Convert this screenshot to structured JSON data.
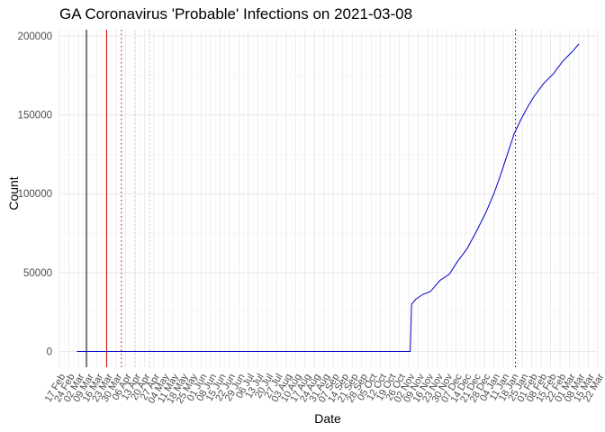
{
  "chart_data": {
    "type": "line",
    "title": "GA Coronavirus 'Probable' Infections on 2021-03-08",
    "xlabel": "Date",
    "ylabel": "Count",
    "x_axis": "date",
    "xlim": [
      "2020-02-17",
      "2021-03-22"
    ],
    "ylim": [
      -10000,
      204000
    ],
    "y_ticks": [
      0,
      50000,
      100000,
      150000,
      200000
    ],
    "y_tick_labels": [
      "0",
      "50000",
      "100000",
      "150000",
      "200000"
    ],
    "x_tick_labels": [
      "17 Feb",
      "24 Feb",
      "02 Mar",
      "09 Mar",
      "16 Mar",
      "23 Mar",
      "30 Mar",
      "06 Apr",
      "13 Apr",
      "20 Apr",
      "27 Apr",
      "04 May",
      "11 May",
      "18 May",
      "25 May",
      "01 Jun",
      "08 Jun",
      "15 Jun",
      "22 Jun",
      "29 Jun",
      "06 Jul",
      "13 Jul",
      "20 Jul",
      "27 Jul",
      "03 Aug",
      "10 Aug",
      "17 Aug",
      "24 Aug",
      "31 Aug",
      "07 Sep",
      "14 Sep",
      "21 Sep",
      "28 Sep",
      "05 Oct",
      "12 Oct",
      "19 Oct",
      "26 Oct",
      "02 Nov",
      "09 Nov",
      "16 Nov",
      "23 Nov",
      "30 Nov",
      "07 Dec",
      "14 Dec",
      "21 Dec",
      "28 Dec",
      "04 Jan",
      "11 Jan",
      "18 Jan",
      "25 Jan",
      "01 Feb",
      "08 Feb",
      "15 Feb",
      "22 Feb",
      "01 Mar",
      "08 Mar",
      "15 Mar",
      "22 Mar"
    ],
    "x_tick_dates": [
      "2020-02-17",
      "2020-02-24",
      "2020-03-02",
      "2020-03-09",
      "2020-03-16",
      "2020-03-23",
      "2020-03-30",
      "2020-04-06",
      "2020-04-13",
      "2020-04-20",
      "2020-04-27",
      "2020-05-04",
      "2020-05-11",
      "2020-05-18",
      "2020-05-25",
      "2020-06-01",
      "2020-06-08",
      "2020-06-15",
      "2020-06-22",
      "2020-06-29",
      "2020-07-06",
      "2020-07-13",
      "2020-07-20",
      "2020-07-27",
      "2020-08-03",
      "2020-08-10",
      "2020-08-17",
      "2020-08-24",
      "2020-08-31",
      "2020-09-07",
      "2020-09-14",
      "2020-09-21",
      "2020-09-28",
      "2020-10-05",
      "2020-10-12",
      "2020-10-19",
      "2020-10-26",
      "2020-11-02",
      "2020-11-09",
      "2020-11-16",
      "2020-11-23",
      "2020-11-30",
      "2020-12-07",
      "2020-12-14",
      "2020-12-21",
      "2020-12-28",
      "2021-01-04",
      "2021-01-11",
      "2021-01-18",
      "2021-01-25",
      "2021-02-01",
      "2021-02-08",
      "2021-02-15",
      "2021-02-22",
      "2021-03-01",
      "2021-03-08",
      "2021-03-15",
      "2021-03-22"
    ],
    "grid": true,
    "series": [
      {
        "color": "#0000cc",
        "points": [
          [
            "2020-03-01",
            0
          ],
          [
            "2020-11-03",
            0
          ],
          [
            "2020-11-04",
            30000
          ],
          [
            "2020-11-07",
            33000
          ],
          [
            "2020-11-12",
            36000
          ],
          [
            "2020-11-18",
            38000
          ],
          [
            "2020-11-25",
            45000
          ],
          [
            "2020-12-02",
            49000
          ],
          [
            "2020-12-08",
            57000
          ],
          [
            "2020-12-15",
            65000
          ],
          [
            "2020-12-22",
            76000
          ],
          [
            "2020-12-29",
            88000
          ],
          [
            "2021-01-04",
            100000
          ],
          [
            "2021-01-09",
            112000
          ],
          [
            "2021-01-14",
            125000
          ],
          [
            "2021-01-19",
            138000
          ],
          [
            "2021-01-24",
            147000
          ],
          [
            "2021-01-29",
            155000
          ],
          [
            "2021-02-03",
            162000
          ],
          [
            "2021-02-10",
            170000
          ],
          [
            "2021-02-17",
            176000
          ],
          [
            "2021-02-24",
            184000
          ],
          [
            "2021-03-03",
            190000
          ],
          [
            "2021-03-08",
            195000
          ]
        ]
      }
    ],
    "vlines": [
      {
        "date": "2020-03-08",
        "color": "#000000",
        "style": "solid"
      },
      {
        "date": "2020-03-23",
        "color": "#cc0000",
        "style": "solid"
      },
      {
        "date": "2020-04-03",
        "color": "#cc0000",
        "style": "dotted"
      },
      {
        "date": "2020-04-13",
        "color": "#e8b0b0",
        "style": "dotted"
      },
      {
        "date": "2020-04-24",
        "color": "#e8b0b0",
        "style": "dotted"
      },
      {
        "date": "2021-01-20",
        "color": "#000000",
        "style": "dotted"
      }
    ]
  }
}
